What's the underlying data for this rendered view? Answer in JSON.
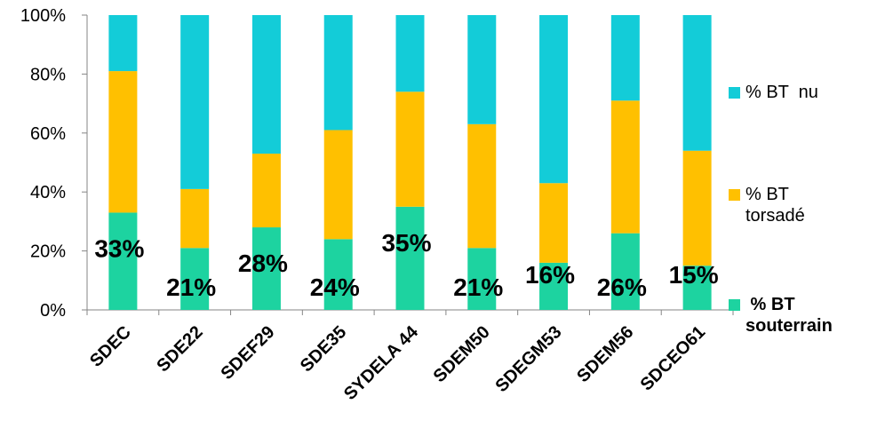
{
  "chart_data": {
    "type": "bar",
    "stacked": true,
    "categories": [
      "SDEC",
      "SDE22",
      "SDEF29",
      "SDE35",
      "SYDELA 44",
      "SDEM50",
      "SDEGM53",
      "SDEM56",
      "SDCEO61"
    ],
    "series": [
      {
        "name": " % BT souterrain",
        "color": "#1dd3a0",
        "values": [
          33,
          21,
          28,
          24,
          35,
          21,
          16,
          26,
          15
        ]
      },
      {
        "name": "% BT torsadé",
        "color": "#ffc000",
        "values": [
          48,
          20,
          25,
          37,
          39,
          42,
          27,
          45,
          39
        ]
      },
      {
        "name": "% BT  nu",
        "color": "#13ccd8",
        "values": [
          19,
          59,
          47,
          39,
          26,
          37,
          57,
          29,
          46
        ]
      }
    ],
    "data_labels": [
      "33%",
      "21%",
      "28%",
      "24%",
      "35%",
      "21%",
      "16%",
      "26%",
      "15%"
    ],
    "y_ticks": [
      "0%",
      "20%",
      "40%",
      "60%",
      "80%",
      "100%"
    ],
    "ylim": [
      0,
      100
    ],
    "grid": false,
    "legend_position": "right"
  },
  "legend": [
    {
      "label": "% BT  nu",
      "color": "#13ccd8",
      "bold": false
    },
    {
      "label": "% BT\ntorsadé",
      "color": "#ffc000",
      "bold": false
    },
    {
      "label": " % BT\nsouterrain",
      "color": "#1dd3a0",
      "bold": true
    }
  ]
}
